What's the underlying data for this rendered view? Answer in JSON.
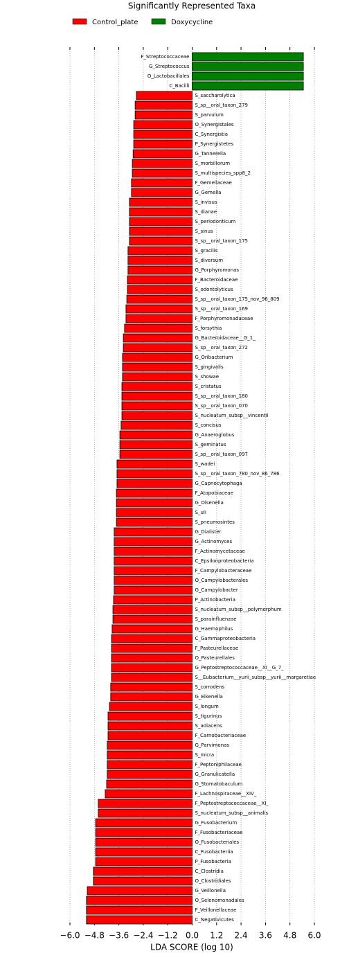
{
  "chart_data": {
    "type": "bar",
    "orientation": "horizontal",
    "title": "Significantly Represented Taxa",
    "xlabel": "LDA SCORE (log 10)",
    "categories": [
      "F_Streptococcaceae",
      "G_Streptococcus",
      "O_Lactobacillales",
      "C_Bacilli",
      "S_saccharolytica",
      "S_sp__oral_taxon_279",
      "S_parvulum",
      "O_Synergistales",
      "C_Synergistia",
      "P_Synergistetes",
      "G_Tannerella",
      "S_morbillorum",
      "S_multispecies_spp8_2",
      "F_Gemellaceae",
      "G_Gemella",
      "S_invisus",
      "S_dianae",
      "S_periodonticum",
      "S_sinus",
      "S_sp__oral_taxon_175",
      "S_gracilis",
      "S_diversum",
      "G_Porphyromonas",
      "F_Bacteroidaceae",
      "S_odontolyticus",
      "S_sp__oral_taxon_175_nov_96_809",
      "S_sp__oral_taxon_169",
      "F_Porphyromonadaceae",
      "S_forsythia",
      "G_Bacteroidaceae__G_1_",
      "S_sp__oral_taxon_272",
      "G_Oribacterium",
      "S_gingivalis",
      "S_showae",
      "S_cristatus",
      "S_sp__oral_taxon_180",
      "S_sp__oral_taxon_070",
      "S_nucleatum_subsp__vincentii",
      "S_concisus",
      "G_Anaeroglobus",
      "S_geminatus",
      "S_sp__oral_taxon_097",
      "S_wadei",
      "S_sp__oral_taxon_780_nov_86_786",
      "G_Capnocytophaga",
      "F_Atopobiaceae",
      "G_Olsenella",
      "S_uli",
      "S_pneumosintes",
      "G_Dialister",
      "G_Actinomyces",
      "F_Actinomycetaceae",
      "C_Epsilonproteobacteria",
      "F_Campylobacteraceae",
      "O_Campylobacterales",
      "G_Campylobacter",
      "P_Actinobacteria",
      "S_nucleatum_subsp__polymorphum",
      "S_parainfluenzae",
      "G_Haemophilus",
      "C_Gammaproteobacteria",
      "F_Pasteurellaceae",
      "O_Pasteurellales",
      "G_Peptostreptococcaceae__XI__G_7_",
      "S__Eubacterium__yurii_subsp__yurii__margaretiae",
      "S_corrodens",
      "G_Eikenella",
      "S_longum",
      "S_tigurinus",
      "S_adiacens",
      "F_Carnobacteriaceae",
      "G_Parvimonas",
      "S_micra",
      "F_Peptoniphilaceae",
      "G_Granulicatella",
      "G_Stomatobaculum",
      "F_Lachnospiraceae__XIV_",
      "F_Peptostreptococcaceae__XI_",
      "S_nucleatum_subsp__animalis",
      "G_Fusobacterium",
      "F_Fusobacteriaceae",
      "O_Fusobacteriales",
      "C_Fusobacteriia",
      "P_Fusobacteria",
      "C_Clostridia",
      "O_Clostridiales",
      "G_Veillonella",
      "O_Selenomonadales",
      "F_Veillonellaceae",
      "C_Negativicutes"
    ],
    "series": [
      {
        "name": "Control_plate",
        "color": "#ff0000",
        "values": [
          null,
          null,
          null,
          null,
          -2.74,
          -2.8,
          -2.8,
          -2.87,
          -2.87,
          -2.87,
          -2.9,
          -2.94,
          -2.94,
          -2.98,
          -2.98,
          -3.08,
          -3.08,
          -3.08,
          -3.08,
          -3.08,
          -3.15,
          -3.15,
          -3.15,
          -3.18,
          -3.18,
          -3.21,
          -3.25,
          -3.25,
          -3.32,
          -3.38,
          -3.38,
          -3.42,
          -3.42,
          -3.42,
          -3.45,
          -3.45,
          -3.45,
          -3.45,
          -3.49,
          -3.55,
          -3.55,
          -3.55,
          -3.69,
          -3.69,
          -3.69,
          -3.72,
          -3.72,
          -3.72,
          -3.72,
          -3.83,
          -3.83,
          -3.83,
          -3.83,
          -3.83,
          -3.83,
          -3.83,
          -3.86,
          -3.89,
          -3.89,
          -3.93,
          -3.96,
          -3.96,
          -3.96,
          -3.96,
          -3.96,
          -4.0,
          -4.0,
          -4.06,
          -4.13,
          -4.13,
          -4.13,
          -4.17,
          -4.17,
          -4.17,
          -4.17,
          -4.2,
          -4.27,
          -4.61,
          -4.61,
          -4.74,
          -4.74,
          -4.74,
          -4.74,
          -4.74,
          -4.85,
          -4.85,
          -5.15,
          -5.19,
          -5.19,
          -5.19
        ]
      },
      {
        "name": "Doxycycline",
        "color": "#008000",
        "values": [
          5.46,
          5.46,
          5.46,
          5.46,
          null,
          null,
          null,
          null,
          null,
          null,
          null,
          null,
          null,
          null,
          null,
          null,
          null,
          null,
          null,
          null,
          null,
          null,
          null,
          null,
          null,
          null,
          null,
          null,
          null,
          null,
          null,
          null,
          null,
          null,
          null,
          null,
          null,
          null,
          null,
          null,
          null,
          null,
          null,
          null,
          null,
          null,
          null,
          null,
          null,
          null,
          null,
          null,
          null,
          null,
          null,
          null,
          null,
          null,
          null,
          null,
          null,
          null,
          null,
          null,
          null,
          null,
          null,
          null,
          null,
          null,
          null,
          null,
          null,
          null,
          null,
          null,
          null,
          null,
          null,
          null,
          null,
          null,
          null,
          null,
          null,
          null,
          null,
          null,
          null,
          null
        ]
      }
    ],
    "xlim": [
      -6,
      6
    ],
    "xticks": [
      {
        "value": -6,
        "label": "−6.0"
      },
      {
        "value": -4.8,
        "label": "−4.8"
      },
      {
        "value": -3.6,
        "label": "−3.6"
      },
      {
        "value": -2.4,
        "label": "−2.4"
      },
      {
        "value": -1.2,
        "label": "−1.2"
      },
      {
        "value": 0,
        "label": "0.0"
      },
      {
        "value": 1.2,
        "label": "1.2"
      },
      {
        "value": 2.4,
        "label": "2.4"
      },
      {
        "value": 3.6,
        "label": "3.6"
      },
      {
        "value": 4.8,
        "label": "4.8"
      },
      {
        "value": 6,
        "label": "6.0"
      }
    ],
    "grid": true
  }
}
